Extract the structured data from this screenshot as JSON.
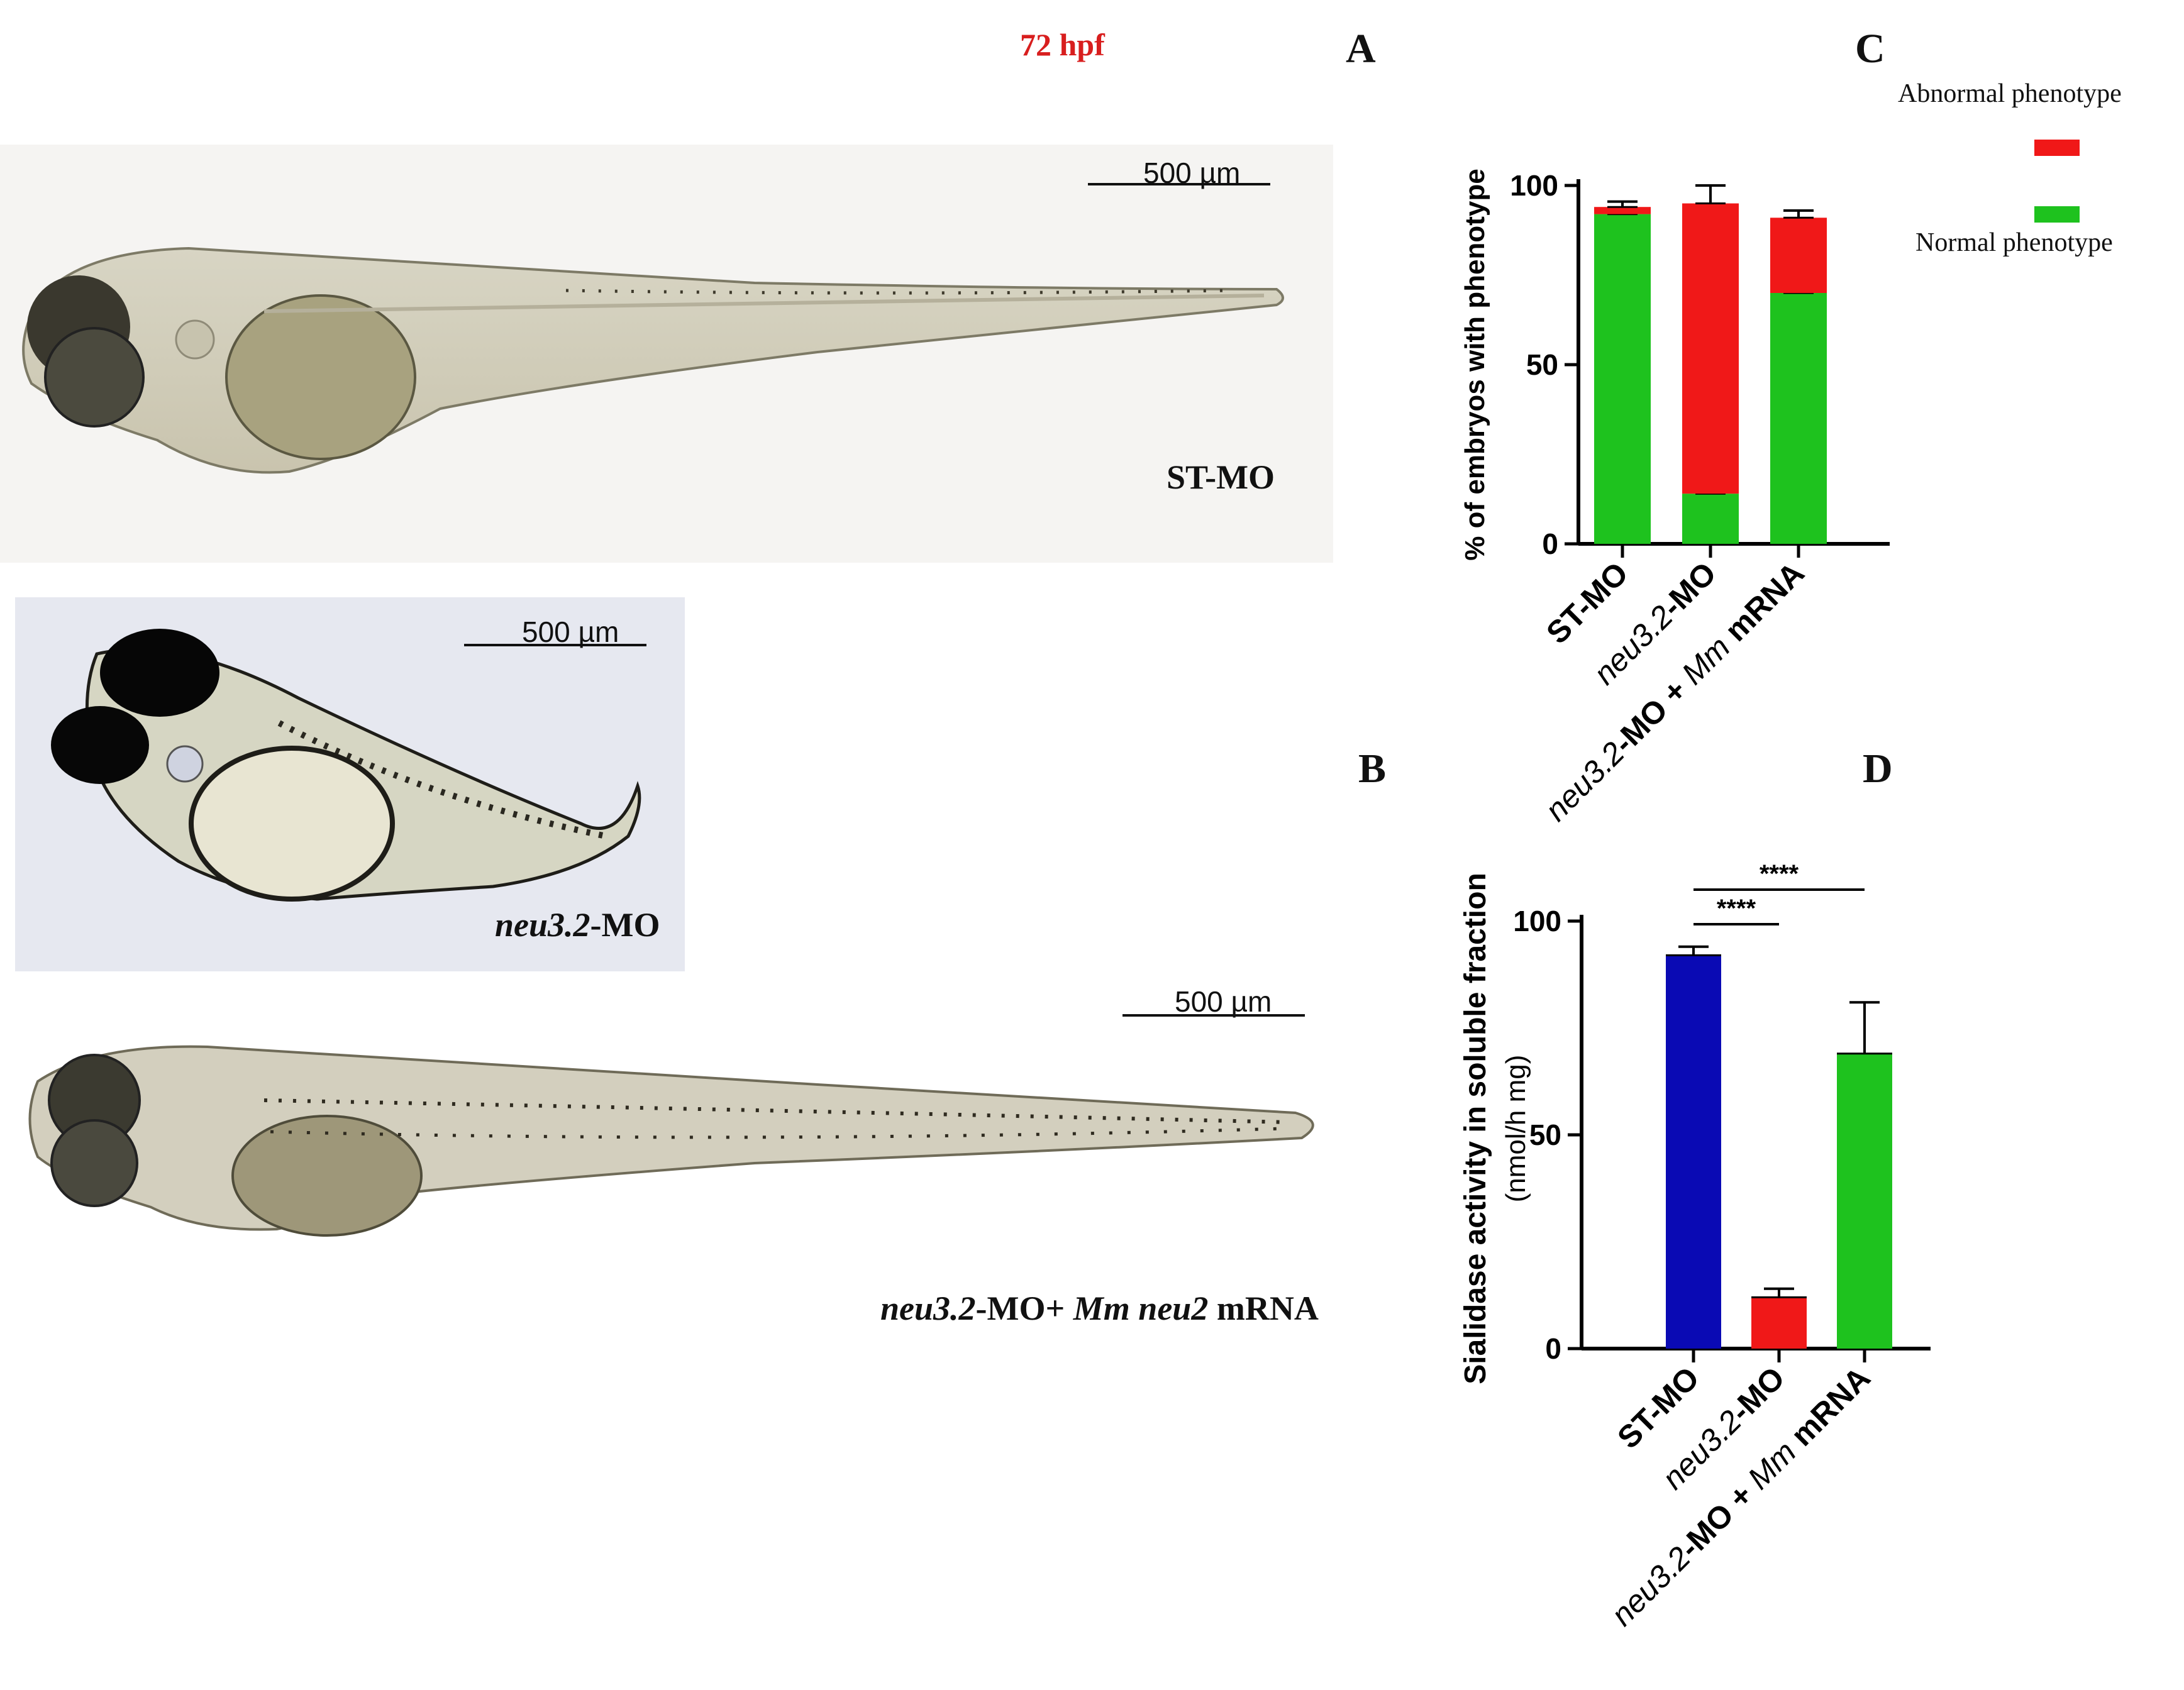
{
  "figure": {
    "timepoint": "72 hpf",
    "panels": {
      "a": "A",
      "b": "B",
      "c": "C",
      "d": "D"
    },
    "images": {
      "st_mo": {
        "scale_label": "500 µm",
        "condition_label": "ST-MO"
      },
      "neu_mo": {
        "scale_label": "500 µm",
        "condition_italic": "neu3.2",
        "condition_rest": "-MO"
      },
      "rescue": {
        "scale_label": "500 µm",
        "label_part1": "neu3.2",
        "label_part2": "-MO+ ",
        "label_part3": "Mm  neu2",
        "label_part4": " mRNA"
      }
    }
  },
  "chart_data": [
    {
      "panel": "C",
      "type": "bar",
      "stacked": true,
      "categories": [
        "ST-MO",
        "neu3.2-MO",
        "neu3.2-MO + Mm mRNA"
      ],
      "category_parts": [
        {
          "italic": "",
          "plain": "ST-MO",
          "italic2": "",
          "plain2": ""
        },
        {
          "italic": "neu3.2",
          "plain": "-MO",
          "italic2": "",
          "plain2": ""
        },
        {
          "italic": "neu3.2",
          "plain": "-MO + ",
          "italic2": "Mm",
          "plain2": " mRNA"
        }
      ],
      "series": [
        {
          "name": "Normal phenotype",
          "color": "#1ec21e",
          "values": [
            92,
            14,
            70
          ],
          "errors": [
            1,
            4,
            3
          ]
        },
        {
          "name": "Abnormal phenotype",
          "color": "#f01818",
          "values": [
            2,
            81,
            21
          ],
          "errors": [
            1.5,
            5,
            2
          ]
        }
      ],
      "ylabel": "% of embryos with phenotype",
      "ylim": [
        0,
        100
      ],
      "yticks": [
        "0",
        "50",
        "100"
      ],
      "legend": {
        "title_top": "Abnormal phenotype",
        "title_bottom": "Normal phenotype",
        "placement": "right"
      }
    },
    {
      "panel": "D",
      "type": "bar",
      "categories": [
        "ST-MO",
        "neu3.2-MO",
        "neu3.2-MO + Mm mRNA"
      ],
      "category_parts": [
        {
          "italic": "",
          "plain": "ST-MO",
          "italic2": "",
          "plain2": ""
        },
        {
          "italic": "neu3.2",
          "plain": "-MO",
          "italic2": "",
          "plain2": ""
        },
        {
          "italic": "neu3.2",
          "plain": "-MO + ",
          "italic2": "Mm",
          "plain2": " mRNA"
        }
      ],
      "values": [
        92,
        12,
        69
      ],
      "errors": [
        2,
        2,
        12
      ],
      "colors": [
        "#0a0ab4",
        "#f01818",
        "#1ec21e"
      ],
      "ylabel": "Sialidase  activity in soluble fraction",
      "ylabel_unit": "(nmol/h mg)",
      "ylim": [
        0,
        100
      ],
      "yticks": [
        "0",
        "50",
        "100"
      ],
      "significance": [
        {
          "from": 0,
          "to": 1,
          "label": "****"
        },
        {
          "from": 0,
          "to": 2,
          "label": "****"
        }
      ]
    }
  ]
}
